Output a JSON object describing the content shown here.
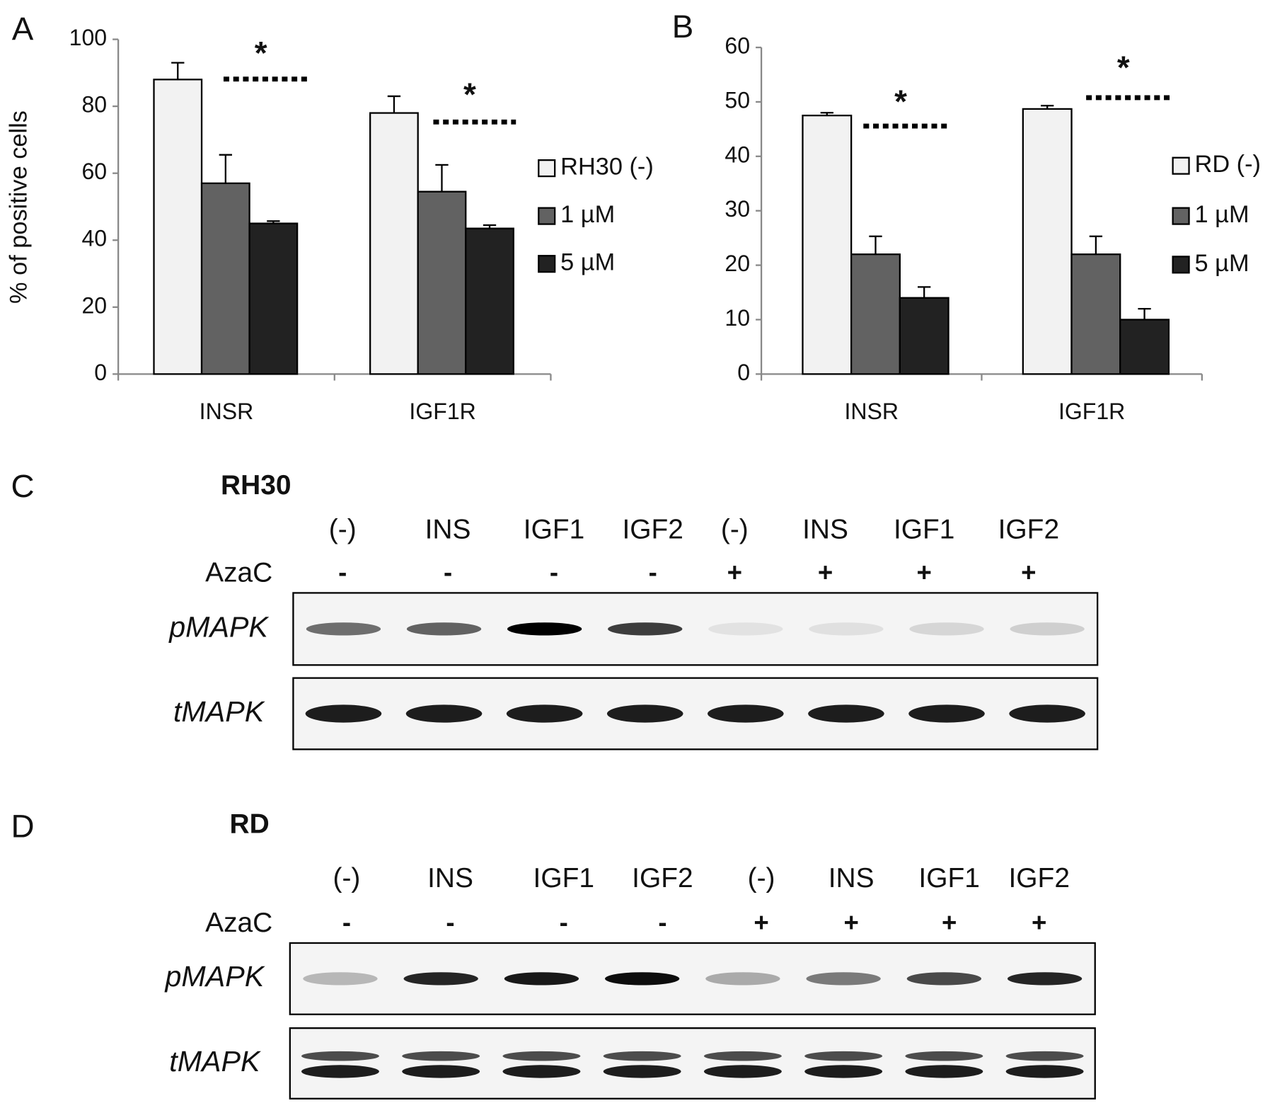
{
  "chart_data": [
    {
      "type": "bar",
      "panel_label": "A",
      "y_label": "% of positive cells",
      "categories": [
        "INSR",
        "IGF1R"
      ],
      "series": [
        {
          "name": "RH30 (-)",
          "color": "#f2f2f2",
          "values": [
            88,
            78
          ],
          "errors": [
            5,
            5
          ]
        },
        {
          "name": "1 µM",
          "color": "#626262",
          "values": [
            57,
            54.5
          ],
          "errors": [
            8.5,
            8
          ]
        },
        {
          "name": "5 µM",
          "color": "#222222",
          "values": [
            45,
            43.5
          ],
          "errors": [
            0.7,
            1
          ]
        }
      ],
      "ylim": [
        0,
        100
      ],
      "yticks": [
        0,
        20,
        40,
        60,
        80,
        100
      ],
      "grid": false,
      "annotations": [
        "*",
        "*"
      ]
    },
    {
      "type": "bar",
      "panel_label": "B",
      "categories": [
        "INSR",
        "IGF1R"
      ],
      "series": [
        {
          "name": "RD (-)",
          "color": "#f2f2f2",
          "values": [
            47.5,
            48.7
          ],
          "errors": [
            0.5,
            0.6
          ]
        },
        {
          "name": "1 µM",
          "color": "#626262",
          "values": [
            22,
            22
          ],
          "errors": [
            3.3,
            3.3
          ]
        },
        {
          "name": "5 µM",
          "color": "#222222",
          "values": [
            14,
            10
          ],
          "errors": [
            2,
            2
          ]
        }
      ],
      "ylim": [
        0,
        60
      ],
      "yticks": [
        0,
        10,
        20,
        30,
        40,
        50,
        60
      ],
      "grid": false,
      "annotations": [
        "*",
        "*"
      ]
    }
  ],
  "blots": [
    {
      "panel_label": "C",
      "cell_line": "RH30",
      "lanes": [
        "(-)",
        "INS",
        "IGF1",
        "IGF2",
        "(-)",
        "INS",
        "IGF1",
        "IGF2"
      ],
      "treatment_label": "AzaC",
      "treatment": [
        "-",
        "-",
        "-",
        "-",
        "+",
        "+",
        "+",
        "+"
      ],
      "rows": [
        "pMAPK",
        "tMAPK"
      ]
    },
    {
      "panel_label": "D",
      "cell_line": "RD",
      "lanes": [
        "(-)",
        "INS",
        "IGF1",
        "IGF2",
        "(-)",
        "INS",
        "IGF1",
        "IGF2"
      ],
      "treatment_label": "AzaC",
      "treatment": [
        "-",
        "-",
        "-",
        "-",
        "+",
        "+",
        "+",
        "+"
      ],
      "rows": [
        "pMAPK",
        "tMAPK"
      ]
    }
  ]
}
